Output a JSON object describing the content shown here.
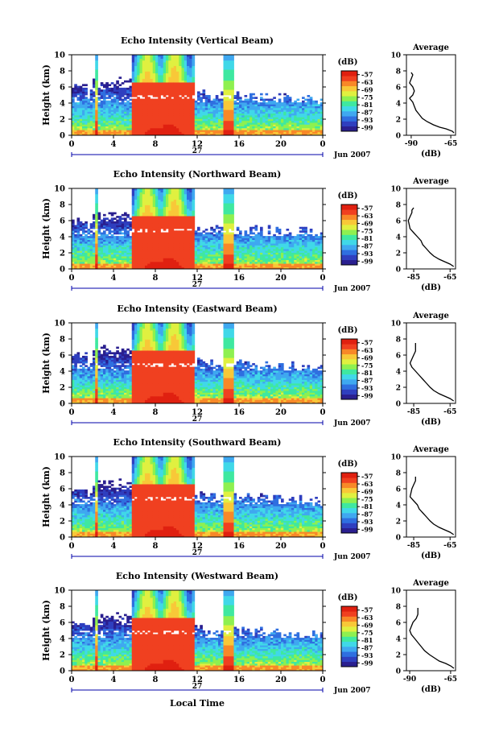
{
  "colorbar": {
    "unit": "(dB)",
    "ticks": [
      -57,
      -63,
      -69,
      -75,
      -81,
      -87,
      -93,
      -99
    ],
    "range": [
      -102,
      -54
    ],
    "colors": [
      "#2a1f8f",
      "#2f3fbf",
      "#2f6fe0",
      "#3fa8f0",
      "#40d8e8",
      "#3fe8a0",
      "#8ef050",
      "#e0f040",
      "#f8c838",
      "#f88828",
      "#f04020",
      "#e02010"
    ]
  },
  "x_axis": {
    "ticks": [
      "0",
      "4",
      "8",
      "12",
      "16",
      "20",
      "0"
    ],
    "date_label": "27",
    "month_label": "Jun 2007",
    "xlabel": "Local Time"
  },
  "y_axis": {
    "label": "Height (km)",
    "ticks": [
      "0",
      "2",
      "4",
      "6",
      "8",
      "10"
    ]
  },
  "average_title": "Average",
  "average_xlabel": "(dB)",
  "chart_data": [
    {
      "type": "heatmap",
      "title": "Echo Intensity (Vertical Beam)",
      "xlabel": "",
      "ylabel": "Height (km)",
      "xlim": [
        0,
        24
      ],
      "ylim": [
        0,
        10
      ],
      "rain_intervals_hours": [
        [
          2.2,
          2.5
        ],
        [
          5.8,
          11.8
        ],
        [
          14.5,
          15.4
        ]
      ],
      "profile": {
        "title": "Average",
        "xlabel": "(dB)",
        "xticks": [
          "-90",
          "-65"
        ],
        "xlim": [
          -93,
          -62
        ],
        "ylim": [
          0,
          10
        ],
        "x": [
          -63,
          -64,
          -68,
          -72,
          -76,
          -80,
          -83,
          -85,
          -87,
          -88,
          -89,
          -91,
          -89,
          -88,
          -89,
          -91,
          -90,
          -89,
          -90
        ],
        "y": [
          0.3,
          0.5,
          0.8,
          1.0,
          1.3,
          1.7,
          2.1,
          2.6,
          3.1,
          3.6,
          4.1,
          4.6,
          5.0,
          5.5,
          6.0,
          6.5,
          7.0,
          7.5,
          7.8
        ]
      }
    },
    {
      "type": "heatmap",
      "title": "Echo Intensity (Northward Beam)",
      "xlabel": "",
      "ylabel": "Height (km)",
      "xlim": [
        0,
        24
      ],
      "ylim": [
        0,
        10
      ],
      "rain_intervals_hours": [
        [
          2.2,
          2.5
        ],
        [
          5.8,
          11.8
        ],
        [
          14.5,
          15.4
        ]
      ],
      "profile": {
        "title": "Average",
        "xlabel": "(dB)",
        "xticks": [
          "-85",
          "-65"
        ],
        "xlim": [
          -89,
          -62
        ],
        "ylim": [
          0,
          10
        ],
        "x": [
          -63,
          -65,
          -68,
          -71,
          -74,
          -76,
          -78,
          -80,
          -81,
          -83,
          -85,
          -87,
          -88,
          -87,
          -86,
          -86,
          -85
        ],
        "y": [
          0.3,
          0.6,
          0.9,
          1.2,
          1.6,
          2.0,
          2.5,
          3.0,
          3.5,
          4.0,
          4.5,
          5.0,
          6.0,
          6.5,
          7.0,
          7.3,
          7.6
        ]
      }
    },
    {
      "type": "heatmap",
      "title": "Echo Intensity (Eastward Beam)",
      "xlabel": "",
      "ylabel": "Height (km)",
      "xlim": [
        0,
        24
      ],
      "ylim": [
        0,
        10
      ],
      "rain_intervals_hours": [
        [
          2.2,
          2.5
        ],
        [
          5.8,
          11.8
        ],
        [
          14.5,
          15.4
        ]
      ],
      "profile": {
        "title": "Average",
        "xlabel": "(dB)",
        "xticks": [
          "-85",
          "-65"
        ],
        "xlim": [
          -89,
          -62
        ],
        "ylim": [
          0,
          10
        ],
        "x": [
          -63,
          -65,
          -68,
          -71,
          -74,
          -76,
          -78,
          -80,
          -82,
          -84,
          -86,
          -87,
          -85,
          -84,
          -84,
          -84
        ],
        "y": [
          0.3,
          0.6,
          0.9,
          1.2,
          1.6,
          2.0,
          2.5,
          3.0,
          3.5,
          4.0,
          4.5,
          5.0,
          6.0,
          6.5,
          7.0,
          7.5
        ]
      }
    },
    {
      "type": "heatmap",
      "title": "Echo Intensity (Southward Beam)",
      "xlabel": "",
      "ylabel": "Height (km)",
      "xlim": [
        0,
        24
      ],
      "ylim": [
        0,
        10
      ],
      "rain_intervals_hours": [
        [
          2.2,
          2.5
        ],
        [
          5.8,
          11.8
        ],
        [
          14.5,
          15.4
        ]
      ],
      "profile": {
        "title": "Average",
        "xlabel": "(dB)",
        "xticks": [
          "-85",
          "-65"
        ],
        "xlim": [
          -89,
          -62
        ],
        "ylim": [
          0,
          10
        ],
        "x": [
          -63,
          -65,
          -68,
          -71,
          -74,
          -76,
          -78,
          -80,
          -82,
          -83,
          -85,
          -87,
          -86,
          -85,
          -84,
          -84
        ],
        "y": [
          0.3,
          0.6,
          0.9,
          1.2,
          1.6,
          2.0,
          2.5,
          3.0,
          3.5,
          4.0,
          4.5,
          5.0,
          6.0,
          6.5,
          7.0,
          7.5
        ]
      }
    },
    {
      "type": "heatmap",
      "title": "Echo Intensity (Westward Beam)",
      "xlabel": "Local Time",
      "ylabel": "Height (km)",
      "xlim": [
        0,
        24
      ],
      "ylim": [
        0,
        10
      ],
      "rain_intervals_hours": [
        [
          2.2,
          2.5
        ],
        [
          5.8,
          11.8
        ],
        [
          14.5,
          15.4
        ]
      ],
      "profile": {
        "title": "Average",
        "xlabel": "(dB)",
        "xticks": [
          "-90",
          "-65"
        ],
        "xlim": [
          -92,
          -62
        ],
        "ylim": [
          0,
          10
        ],
        "x": [
          -63,
          -65,
          -68,
          -72,
          -75,
          -78,
          -81,
          -83,
          -85,
          -87,
          -89,
          -90,
          -88,
          -86,
          -85,
          -85
        ],
        "y": [
          0.3,
          0.6,
          0.9,
          1.2,
          1.6,
          2.0,
          2.5,
          3.0,
          3.5,
          4.0,
          4.5,
          5.0,
          6.0,
          6.5,
          7.0,
          7.8
        ]
      }
    }
  ]
}
